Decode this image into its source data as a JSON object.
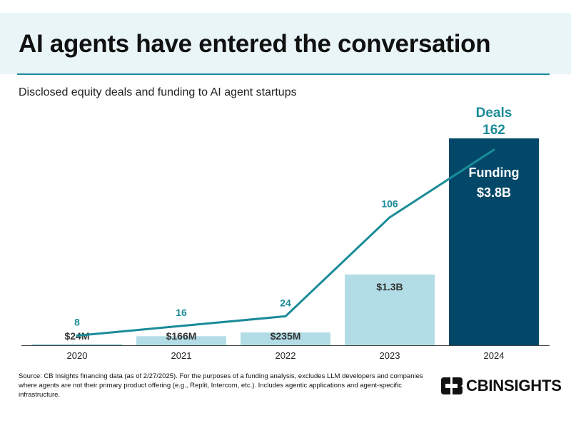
{
  "header": {
    "title": "AI agents have entered the conversation",
    "subtitle": "Disclosed equity deals and funding to AI agent startups"
  },
  "chart_data": {
    "type": "bar",
    "categories": [
      "2020",
      "2021",
      "2022",
      "2023",
      "2024"
    ],
    "series": [
      {
        "name": "Funding",
        "kind": "bar",
        "values": [
          24,
          166,
          235,
          1300,
          3800
        ],
        "labels": [
          "$24M",
          "$166M",
          "$235M",
          "$1.3B",
          "$3.8B"
        ],
        "colors": [
          "#b3dde6",
          "#b3dde6",
          "#b3dde6",
          "#b3dde6",
          "#034869"
        ]
      },
      {
        "name": "Deals",
        "kind": "line",
        "values": [
          8,
          16,
          24,
          106,
          162
        ],
        "labels": [
          "8",
          "16",
          "24",
          "106",
          "162"
        ],
        "color": "#1a8b98"
      }
    ],
    "funding_label": "Funding",
    "deals_label": "Deals",
    "bar_axis": {
      "min": 0,
      "max": 3800
    },
    "line_axis": {
      "min": 0,
      "max": 162
    },
    "grid": false,
    "legend": "none"
  },
  "footer": {
    "source": "Source: CB Insights financing data (as of 2/27/2025). For the purposes of a funding analysis, excludes LLM developers and companies where agents are not their primary product offering (e.g., Replit, Intercom, etc.). Includes agentic applications and agent-specific infrastructure.",
    "logo_text": "CBINSIGHTS",
    "logo_icon": "cb-insights-logo-icon"
  }
}
